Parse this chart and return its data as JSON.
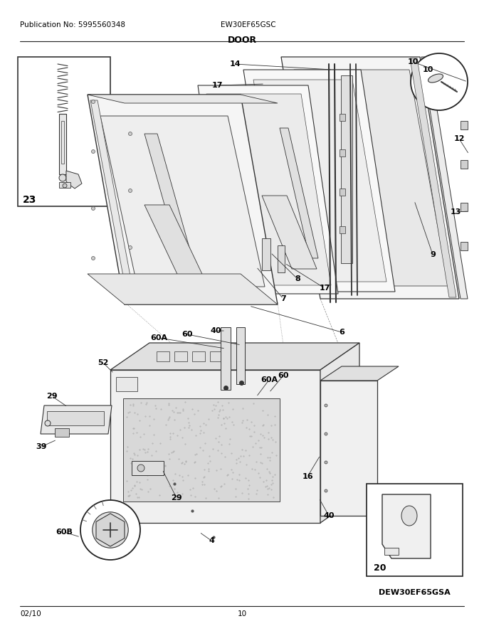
{
  "publication": "Publication No: 5995560348",
  "model": "EW30EF65GSC",
  "section": "DOOR",
  "date": "02/10",
  "page": "10",
  "bg_color": "#ffffff",
  "lc": "#222222",
  "tc": "#000000",
  "fig_w": 6.8,
  "fig_h": 8.8,
  "dpi": 100
}
